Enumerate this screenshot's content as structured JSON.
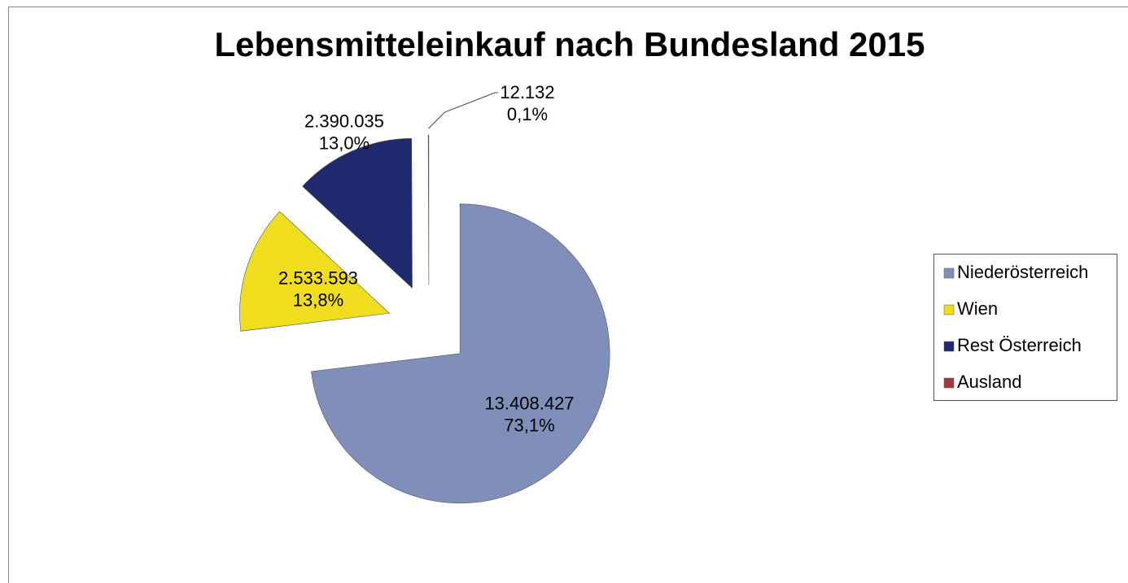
{
  "chart_data": {
    "type": "pie",
    "title": "Lebensmitteleinkauf nach Bundesland 2015",
    "categories": [
      "Niederösterreich",
      "Wien",
      "Rest Österreich",
      "Ausland"
    ],
    "values": [
      13408427,
      2533593,
      2390035,
      12132
    ],
    "value_labels": [
      "13.408.427",
      "2.533.593",
      "2.390.035",
      "12.132"
    ],
    "percents": [
      73.1,
      13.8,
      13.0,
      0.1
    ],
    "percent_labels": [
      "73,1%",
      "13,8%",
      "13,0%",
      "0,1%"
    ],
    "colors": [
      "#7f8fba",
      "#f0dd1e",
      "#1f2a6e",
      "#a33a3a"
    ],
    "legend": "right"
  }
}
